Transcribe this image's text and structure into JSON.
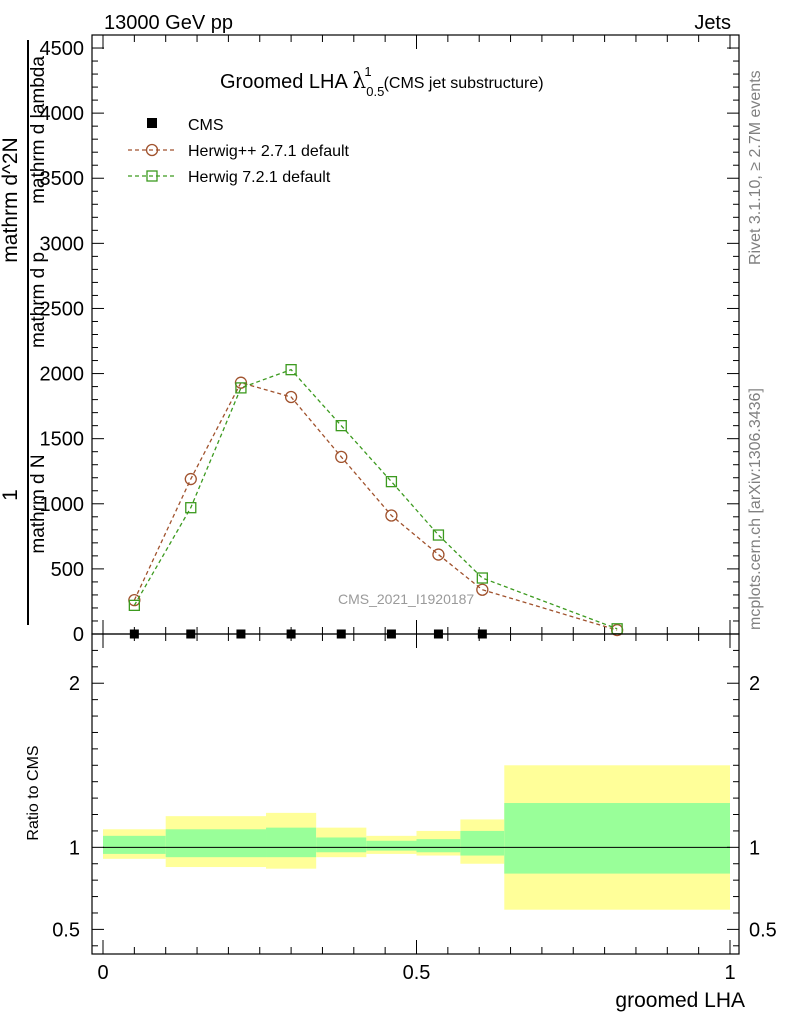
{
  "header": {
    "left": "13000 GeV pp",
    "right": "Jets",
    "title_main": "Groomed LHA ",
    "title_lambda": "λ",
    "title_sub": "0.5",
    "title_sup": "1",
    "title_note": "(CMS jet substructure)"
  },
  "side_labels": {
    "rivet": "Rivet 3.1.10, ≥ 2.7M events",
    "mcplots": "mcplots.cern.ch [arXiv:1306.3436]"
  },
  "watermark": "CMS_2021_I1920187",
  "colors": {
    "herwigpp": "#a0522d",
    "herwig7": "#3c9a1f",
    "band_inner": "#99ff99",
    "band_outer": "#ffff99"
  },
  "chart_data": [
    {
      "type": "line",
      "name": "main",
      "xlabel": "groomed LHA",
      "ylabel_parts": [
        "1",
        "mathrm d N",
        "mathrm d^2N",
        "mathrm d p",
        "mathrm d lambda"
      ],
      "ylim": [
        0,
        4600
      ],
      "xlim": [
        0,
        1
      ],
      "yticks": [
        0,
        500,
        1000,
        1500,
        2000,
        2500,
        3000,
        3500,
        4000,
        4500
      ],
      "ytick_labels": [
        "0",
        "500",
        "1000",
        "1500",
        "2000",
        "2500",
        "3000",
        "3500",
        "4000",
        "4500"
      ],
      "legend_position": "top-left",
      "series": [
        {
          "name": "CMS",
          "marker": "filled-square",
          "x": [
            0.05,
            0.14,
            0.22,
            0.3,
            0.38,
            0.46,
            0.535,
            0.605
          ],
          "y": [
            0,
            0,
            0,
            0,
            0,
            0,
            0,
            0
          ]
        },
        {
          "name": "Herwig++ 2.7.1 default",
          "marker": "open-circle",
          "color": "#a0522d",
          "x": [
            0.05,
            0.14,
            0.22,
            0.3,
            0.38,
            0.46,
            0.535,
            0.605,
            0.82
          ],
          "y": [
            260,
            1190,
            1930,
            1820,
            1360,
            910,
            610,
            340,
            30
          ]
        },
        {
          "name": "Herwig 7.2.1 default",
          "marker": "open-square",
          "color": "#3c9a1f",
          "x": [
            0.05,
            0.14,
            0.22,
            0.3,
            0.38,
            0.46,
            0.535,
            0.605,
            0.82
          ],
          "y": [
            220,
            970,
            1890,
            2030,
            1600,
            1170,
            760,
            430,
            40
          ]
        }
      ]
    },
    {
      "type": "area",
      "name": "ratio",
      "ylabel": "Ratio to CMS",
      "xlabel": "groomed LHA",
      "xlim": [
        0,
        1
      ],
      "ylim": [
        0.35,
        2.3
      ],
      "yticks": [
        0.5,
        1,
        2
      ],
      "ytick_labels": [
        "0.5",
        "1",
        "2"
      ],
      "xticks": [
        0,
        0.5,
        1
      ],
      "xtick_labels": [
        "0",
        "0.5",
        "1"
      ],
      "reference_line": 1,
      "bins": [
        {
          "x0": 0.0,
          "x1": 0.1,
          "inner": [
            0.96,
            1.07
          ],
          "outer": [
            0.93,
            1.11
          ]
        },
        {
          "x0": 0.1,
          "x1": 0.26,
          "inner": [
            0.94,
            1.11
          ],
          "outer": [
            0.88,
            1.19
          ]
        },
        {
          "x0": 0.26,
          "x1": 0.34,
          "inner": [
            0.94,
            1.12
          ],
          "outer": [
            0.87,
            1.21
          ]
        },
        {
          "x0": 0.34,
          "x1": 0.42,
          "inner": [
            0.97,
            1.06
          ],
          "outer": [
            0.94,
            1.12
          ]
        },
        {
          "x0": 0.42,
          "x1": 0.5,
          "inner": [
            0.98,
            1.04
          ],
          "outer": [
            0.96,
            1.07
          ]
        },
        {
          "x0": 0.5,
          "x1": 0.57,
          "inner": [
            0.97,
            1.05
          ],
          "outer": [
            0.95,
            1.1
          ]
        },
        {
          "x0": 0.57,
          "x1": 0.64,
          "inner": [
            0.95,
            1.1
          ],
          "outer": [
            0.9,
            1.17
          ]
        },
        {
          "x0": 0.64,
          "x1": 1.0,
          "inner": [
            0.84,
            1.27
          ],
          "outer": [
            0.62,
            1.5
          ]
        }
      ]
    }
  ]
}
